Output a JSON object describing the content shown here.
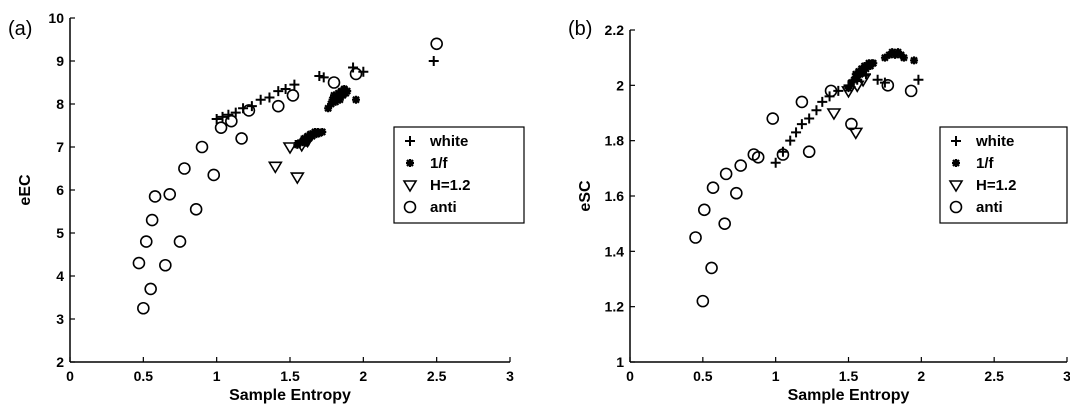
{
  "chart_data": [
    {
      "type": "scatter",
      "panel_label": "(a)",
      "xlabel": "Sample Entropy",
      "ylabel": "eEC",
      "xlim": [
        0,
        3
      ],
      "ylim": [
        2,
        10
      ],
      "xticks": [
        "0",
        "0.5",
        "1",
        "1.5",
        "2",
        "2.5",
        "3"
      ],
      "yticks": [
        "2",
        "3",
        "4",
        "5",
        "6",
        "7",
        "8",
        "9",
        "10"
      ],
      "grid": false,
      "legend_position": "right",
      "series": [
        {
          "name": "white",
          "marker": "plus",
          "points": [
            [
              1.0,
              7.65
            ],
            [
              1.04,
              7.7
            ],
            [
              1.08,
              7.75
            ],
            [
              1.13,
              7.8
            ],
            [
              1.18,
              7.9
            ],
            [
              1.24,
              7.95
            ],
            [
              1.3,
              8.1
            ],
            [
              1.36,
              8.15
            ],
            [
              1.42,
              8.3
            ],
            [
              1.47,
              8.35
            ],
            [
              1.53,
              8.45
            ],
            [
              1.7,
              8.65
            ],
            [
              1.73,
              8.62
            ],
            [
              1.93,
              8.85
            ],
            [
              2.0,
              8.75
            ],
            [
              2.48,
              9.0
            ]
          ]
        },
        {
          "name": "1/f",
          "marker": "star",
          "points": [
            [
              1.76,
              7.9
            ],
            [
              1.78,
              8.0
            ],
            [
              1.79,
              8.1
            ],
            [
              1.8,
              8.2
            ],
            [
              1.81,
              8.05
            ],
            [
              1.82,
              8.15
            ],
            [
              1.83,
              8.25
            ],
            [
              1.84,
              8.1
            ],
            [
              1.85,
              8.3
            ],
            [
              1.86,
              8.2
            ],
            [
              1.87,
              8.35
            ],
            [
              1.88,
              8.25
            ],
            [
              1.89,
              8.3
            ],
            [
              1.95,
              8.1
            ],
            [
              1.55,
              7.05
            ],
            [
              1.57,
              7.1
            ],
            [
              1.59,
              7.15
            ],
            [
              1.6,
              7.2
            ],
            [
              1.61,
              7.1
            ],
            [
              1.62,
              7.25
            ],
            [
              1.63,
              7.2
            ],
            [
              1.64,
              7.3
            ],
            [
              1.65,
              7.25
            ],
            [
              1.66,
              7.3
            ],
            [
              1.67,
              7.35
            ],
            [
              1.68,
              7.3
            ],
            [
              1.69,
              7.35
            ],
            [
              1.7,
              7.32
            ],
            [
              1.72,
              7.35
            ]
          ]
        },
        {
          "name": "H=1.2",
          "marker": "triangle",
          "points": [
            [
              1.4,
              6.55
            ],
            [
              1.5,
              7.0
            ],
            [
              1.55,
              6.3
            ],
            [
              1.58,
              7.05
            ],
            [
              1.62,
              7.15
            ]
          ]
        },
        {
          "name": "anti",
          "marker": "circle",
          "points": [
            [
              0.47,
              4.3
            ],
            [
              0.5,
              3.25
            ],
            [
              0.52,
              4.8
            ],
            [
              0.55,
              3.7
            ],
            [
              0.56,
              5.3
            ],
            [
              0.58,
              5.85
            ],
            [
              0.65,
              4.25
            ],
            [
              0.68,
              5.9
            ],
            [
              0.75,
              4.8
            ],
            [
              0.78,
              6.5
            ],
            [
              0.86,
              5.55
            ],
            [
              0.9,
              7.0
            ],
            [
              0.98,
              6.35
            ],
            [
              1.03,
              7.45
            ],
            [
              1.1,
              7.6
            ],
            [
              1.17,
              7.2
            ],
            [
              1.22,
              7.85
            ],
            [
              1.42,
              7.95
            ],
            [
              1.52,
              8.2
            ],
            [
              1.8,
              8.5
            ],
            [
              1.95,
              8.7
            ],
            [
              2.5,
              9.4
            ]
          ]
        }
      ]
    },
    {
      "type": "scatter",
      "panel_label": "(b)",
      "xlabel": "Sample Entropy",
      "ylabel": "eSC",
      "xlim": [
        0,
        3
      ],
      "ylim": [
        1,
        2.2
      ],
      "xticks": [
        "0",
        "0.5",
        "1",
        "1.5",
        "2",
        "2.5",
        "3"
      ],
      "yticks": [
        "1",
        "1.2",
        "1.4",
        "1.6",
        "1.8",
        "2",
        "2.2"
      ],
      "grid": false,
      "legend_position": "right",
      "series": [
        {
          "name": "white",
          "marker": "plus",
          "points": [
            [
              1.0,
              1.72
            ],
            [
              1.05,
              1.76
            ],
            [
              1.1,
              1.8
            ],
            [
              1.14,
              1.83
            ],
            [
              1.18,
              1.86
            ],
            [
              1.23,
              1.88
            ],
            [
              1.28,
              1.91
            ],
            [
              1.32,
              1.94
            ],
            [
              1.37,
              1.96
            ],
            [
              1.43,
              1.98
            ],
            [
              1.5,
              2.0
            ],
            [
              1.56,
              2.02
            ],
            [
              1.62,
              2.04
            ],
            [
              1.7,
              2.02
            ],
            [
              1.75,
              2.01
            ],
            [
              1.98,
              2.02
            ]
          ]
        },
        {
          "name": "1/f",
          "marker": "star",
          "points": [
            [
              1.5,
              1.99
            ],
            [
              1.52,
              2.01
            ],
            [
              1.54,
              2.02
            ],
            [
              1.55,
              2.04
            ],
            [
              1.56,
              2.03
            ],
            [
              1.57,
              2.05
            ],
            [
              1.58,
              2.04
            ],
            [
              1.59,
              2.06
            ],
            [
              1.6,
              2.05
            ],
            [
              1.61,
              2.07
            ],
            [
              1.62,
              2.06
            ],
            [
              1.63,
              2.07
            ],
            [
              1.64,
              2.08
            ],
            [
              1.65,
              2.07
            ],
            [
              1.66,
              2.08
            ],
            [
              1.67,
              2.08
            ],
            [
              1.75,
              2.1
            ],
            [
              1.78,
              2.11
            ],
            [
              1.8,
              2.12
            ],
            [
              1.82,
              2.11
            ],
            [
              1.84,
              2.12
            ],
            [
              1.86,
              2.11
            ],
            [
              1.88,
              2.1
            ],
            [
              1.95,
              2.09
            ]
          ]
        },
        {
          "name": "H=1.2",
          "marker": "triangle",
          "points": [
            [
              1.4,
              1.9
            ],
            [
              1.5,
              1.98
            ],
            [
              1.55,
              1.83
            ],
            [
              1.56,
              2.0
            ],
            [
              1.6,
              2.02
            ]
          ]
        },
        {
          "name": "anti",
          "marker": "circle",
          "points": [
            [
              0.45,
              1.45
            ],
            [
              0.5,
              1.22
            ],
            [
              0.51,
              1.55
            ],
            [
              0.56,
              1.34
            ],
            [
              0.57,
              1.63
            ],
            [
              0.65,
              1.5
            ],
            [
              0.66,
              1.68
            ],
            [
              0.73,
              1.61
            ],
            [
              0.76,
              1.71
            ],
            [
              0.85,
              1.75
            ],
            [
              0.88,
              1.74
            ],
            [
              0.98,
              1.88
            ],
            [
              1.05,
              1.75
            ],
            [
              1.18,
              1.94
            ],
            [
              1.23,
              1.76
            ],
            [
              1.38,
              1.98
            ],
            [
              1.52,
              1.86
            ],
            [
              1.77,
              2.0
            ],
            [
              1.93,
              1.98
            ]
          ]
        }
      ]
    }
  ]
}
